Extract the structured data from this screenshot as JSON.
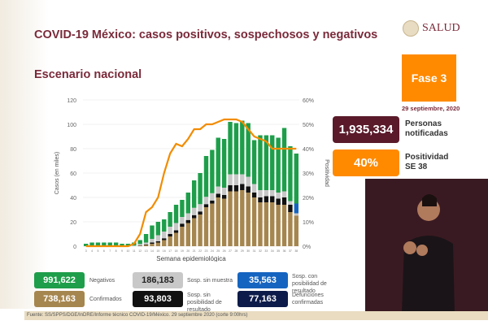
{
  "header": {
    "title": "COVID-19 México: casos positivos, sospechosos y negativos",
    "subtitle": "Escenario nacional",
    "logo_text": "SALUD"
  },
  "phase": {
    "label": "Fase 3",
    "date": "29 septiembre, 2020",
    "color": "#ff8a00"
  },
  "kpis": [
    {
      "value": "1,935,334",
      "label1": "Personas",
      "label2": "notificadas",
      "color": "#5a1a2a"
    },
    {
      "value": "40%",
      "label1": "Positividad",
      "label2": "SE 38",
      "color": "#ff8a00"
    }
  ],
  "summary": [
    {
      "value": "991,622",
      "label": "Negativos",
      "color": "#1e9e4a"
    },
    {
      "value": "738,163",
      "label": "Confirmados",
      "color": "#a6864f"
    },
    {
      "value": "186,183",
      "label": "Sosp. sin muestra",
      "color": "#c8c8c8"
    },
    {
      "value": "93,803",
      "label": "Sosp. sin posibilidad de resultado",
      "color": "#111111"
    },
    {
      "value": "35,563",
      "label": "Sosp. con posibilidad de resultado",
      "color": "#1565c0"
    },
    {
      "value": "77,163",
      "label": "Defunciones confirmadas",
      "color": "#0d1b4a"
    }
  ],
  "footer": "Fuente: SS/SPPS/DGE/InDRE/Informe técnico COVID-19/México. 29 septiembre 2020 (corte 9:00hrs)",
  "chart_data": {
    "type": "bar",
    "xlabel": "Semana epidemiológica",
    "ylabel": "Casos (en miles)",
    "y2label": "Positividad",
    "ylim": [
      0,
      120
    ],
    "yticks": [
      "0",
      "20",
      "40",
      "60",
      "80",
      "100",
      "120"
    ],
    "y2lim": [
      0,
      60
    ],
    "y2ticks": [
      "0%",
      "10%",
      "20%",
      "30%",
      "40%",
      "50%",
      "60%"
    ],
    "weeks": [
      3,
      4,
      5,
      6,
      7,
      8,
      9,
      10,
      11,
      12,
      13,
      14,
      15,
      16,
      17,
      18,
      19,
      20,
      21,
      22,
      23,
      24,
      25,
      26,
      27,
      28,
      29,
      30,
      31,
      32,
      33,
      34,
      35,
      36,
      37,
      38
    ],
    "series": [
      {
        "name": "Confirmados",
        "color": "#a6864f",
        "values": [
          0,
          0,
          0,
          0,
          0,
          0,
          0,
          0,
          0,
          0.5,
          1,
          2,
          3,
          5,
          8,
          11,
          16,
          19,
          23,
          26,
          32,
          35,
          40,
          39,
          45,
          45,
          46,
          44,
          40,
          36,
          36,
          36,
          34,
          34,
          28,
          25
        ]
      },
      {
        "name": "Sosp. sin posibilidad de resultado",
        "color": "#111111",
        "values": [
          0,
          0,
          0,
          0,
          0,
          0,
          0,
          0,
          0,
          0.3,
          0.5,
          1,
          1,
          1.5,
          2,
          2,
          2.5,
          2.5,
          2.5,
          2.5,
          2.5,
          2.5,
          3,
          3,
          5,
          5,
          5,
          5,
          4,
          4,
          5,
          5,
          5,
          6,
          6,
          0
        ]
      },
      {
        "name": "Sosp. sin muestra",
        "color": "#c8c8c8",
        "values": [
          0,
          0,
          0,
          0,
          0,
          0,
          0,
          0,
          0.5,
          1,
          1.5,
          3,
          5,
          5.5,
          6,
          6,
          5.5,
          5.5,
          6,
          6,
          6,
          6,
          6,
          6,
          9,
          9,
          8,
          8,
          7,
          6,
          5,
          5,
          5,
          5,
          3,
          2
        ]
      },
      {
        "name": "Sosp. con posibilidad de resultado",
        "color": "#1565c0",
        "values": [
          0,
          0,
          0,
          0,
          0,
          0,
          0,
          0,
          0,
          0,
          0,
          0,
          0,
          0,
          0,
          0,
          0,
          0,
          0,
          0,
          0,
          0,
          0,
          0,
          0,
          0,
          0,
          0,
          0,
          0,
          0,
          0,
          0,
          0,
          0,
          8
        ]
      },
      {
        "name": "Negativos",
        "color": "#1e9e4a",
        "values": [
          2,
          3,
          3,
          3,
          3,
          3,
          2,
          2,
          2.5,
          3.2,
          7,
          11,
          11,
          10,
          12,
          15,
          14,
          17,
          22.5,
          25.5,
          33.5,
          35.5,
          40,
          40,
          43,
          42,
          44,
          44,
          36,
          45,
          45,
          45,
          45,
          52,
          45,
          41
        ]
      }
    ],
    "positivity": [
      0,
      0,
      0,
      0,
      0,
      0,
      0,
      0,
      1,
      5,
      14,
      16,
      20,
      30,
      38,
      42,
      41,
      44,
      48,
      48,
      50,
      50,
      51,
      52,
      52,
      52,
      51,
      48,
      45,
      44,
      43,
      40,
      40,
      40,
      40,
      40
    ]
  }
}
